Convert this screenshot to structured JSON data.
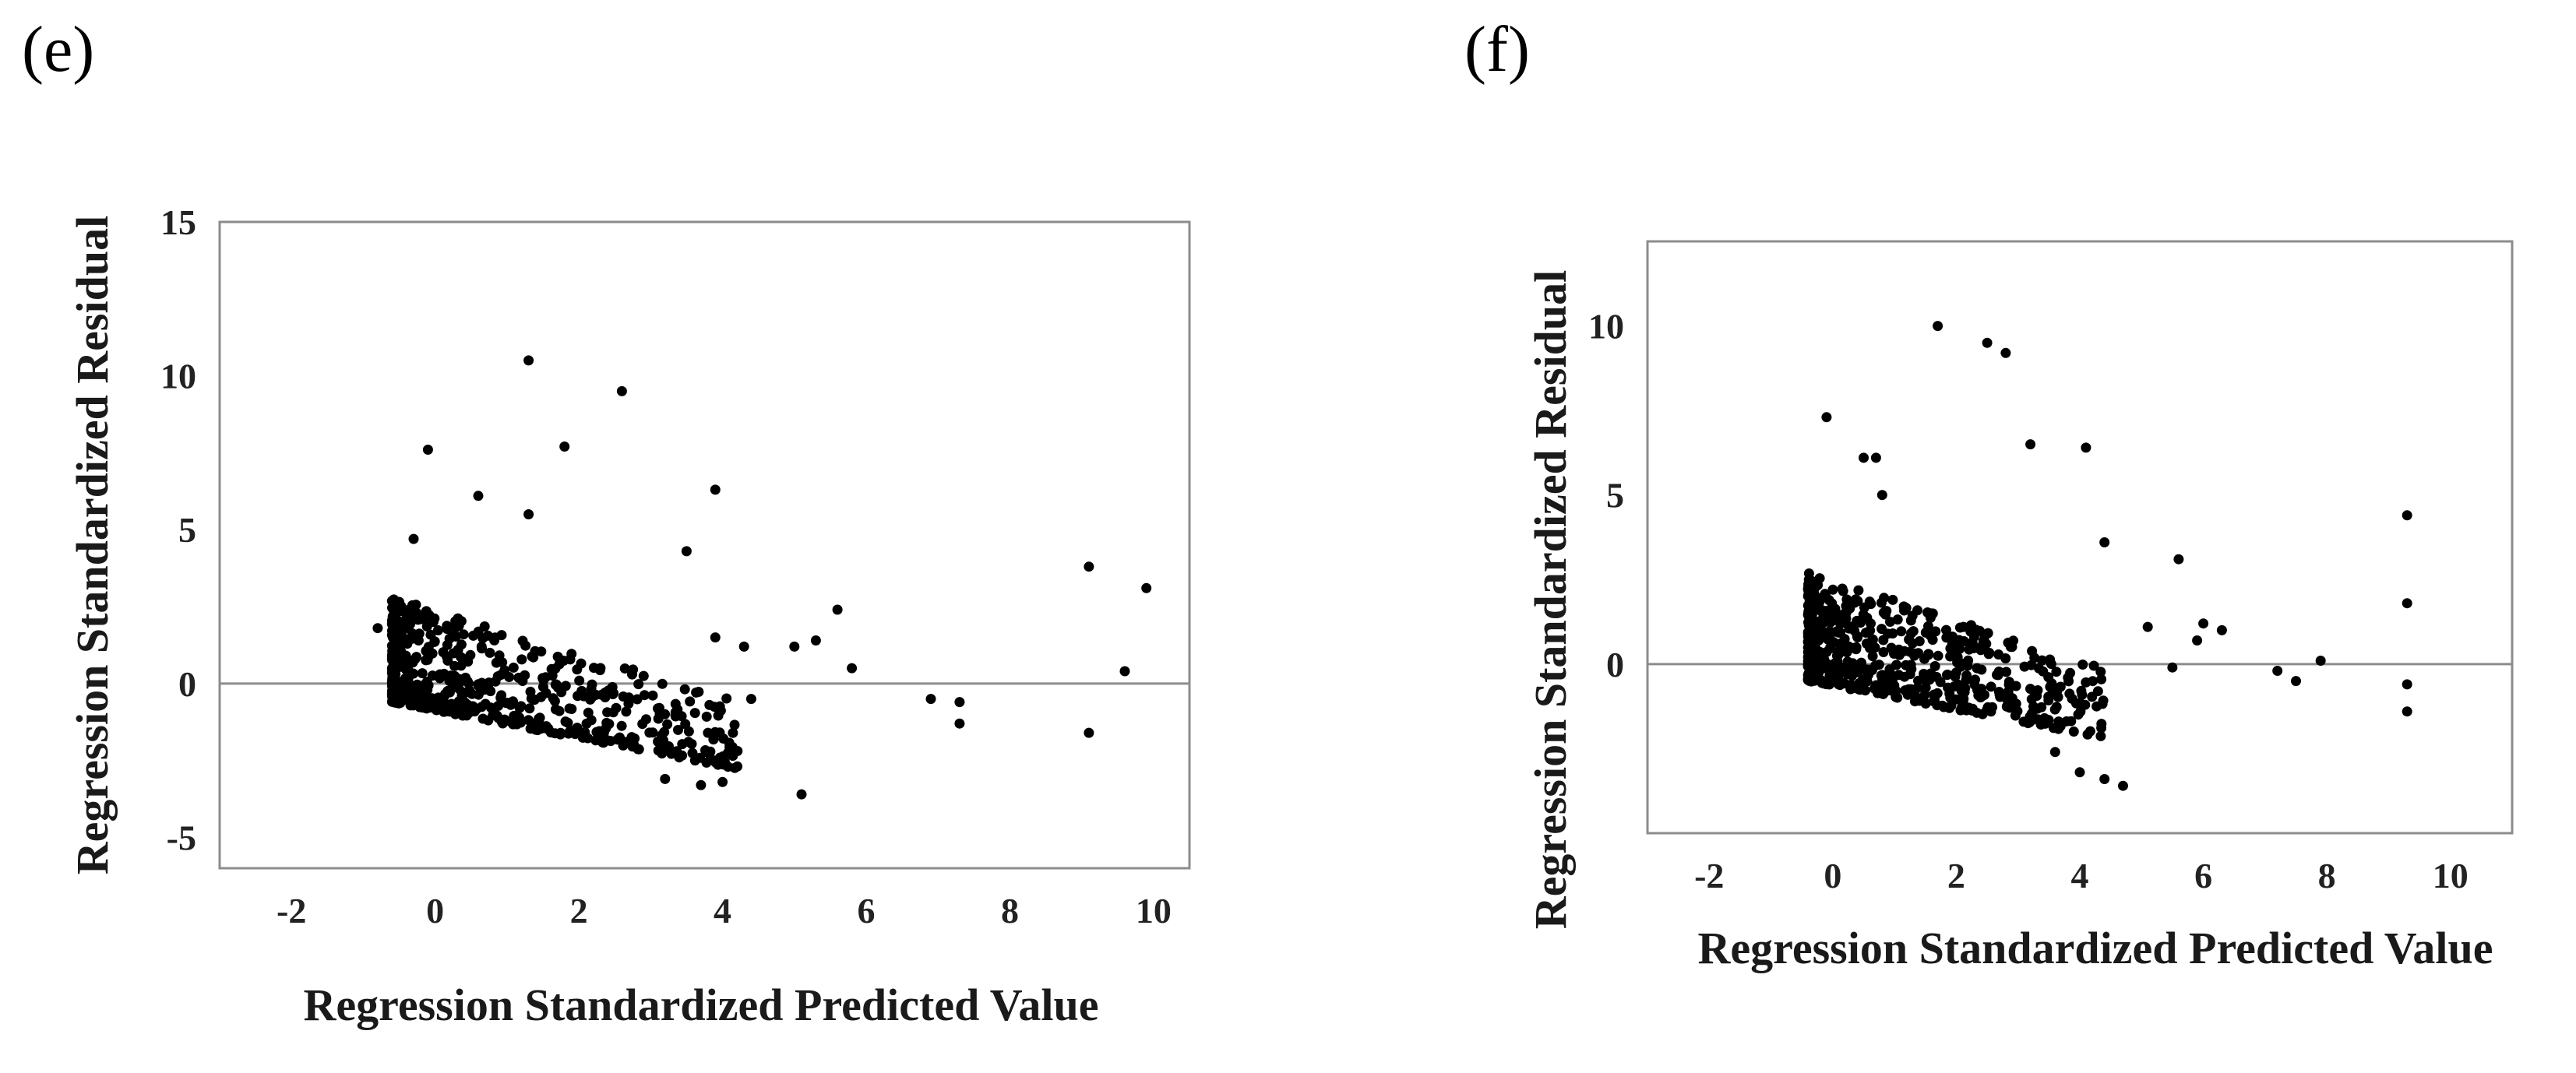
{
  "chart_data": [
    {
      "panel": "(e)",
      "type": "scatter",
      "title": "",
      "xlabel": "Regression Standardized Predicted Value",
      "ylabel": "Regression Standardized Residual",
      "xlim": [
        -3,
        10.5
      ],
      "ylim": [
        -6,
        15
      ],
      "xticks": [
        -2,
        0,
        2,
        4,
        6,
        8,
        10
      ],
      "yticks": [
        15,
        10,
        5,
        0,
        -5
      ],
      "reference_line_y": 0,
      "outliers": [
        {
          "x": 1.3,
          "y": 10.5
        },
        {
          "x": 2.6,
          "y": 9.5
        },
        {
          "x": 1.8,
          "y": 7.7
        },
        {
          "x": -0.1,
          "y": 7.6
        },
        {
          "x": 3.9,
          "y": 6.3
        },
        {
          "x": 0.6,
          "y": 6.1
        },
        {
          "x": 1.3,
          "y": 5.5
        },
        {
          "x": -0.3,
          "y": 4.7
        },
        {
          "x": 3.5,
          "y": 4.3
        },
        {
          "x": 9.1,
          "y": 3.8
        },
        {
          "x": 9.9,
          "y": 3.1
        },
        {
          "x": 5.6,
          "y": 2.4
        },
        {
          "x": 5.0,
          "y": 1.2
        },
        {
          "x": 5.3,
          "y": 1.4
        },
        {
          "x": 5.8,
          "y": 0.5
        },
        {
          "x": 9.6,
          "y": 0.4
        },
        {
          "x": 6.9,
          "y": -0.5
        },
        {
          "x": 7.3,
          "y": -0.6
        },
        {
          "x": 7.3,
          "y": -1.3
        },
        {
          "x": 9.1,
          "y": -1.6
        },
        {
          "x": 5.1,
          "y": -3.6
        },
        {
          "x": 4.0,
          "y": -3.2
        },
        {
          "x": 3.7,
          "y": -3.3
        },
        {
          "x": 3.2,
          "y": -3.1
        },
        {
          "x": -0.8,
          "y": 1.8
        },
        {
          "x": 4.3,
          "y": 1.2
        },
        {
          "x": 4.4,
          "y": -0.5
        },
        {
          "x": 3.9,
          "y": 1.5
        }
      ],
      "cluster": {
        "x_range": [
          -0.6,
          4.3
        ],
        "baseline": -0.6,
        "slope": -0.45,
        "spread": 3.4,
        "n": 620
      }
    },
    {
      "panel": "(f)",
      "type": "scatter",
      "title": "",
      "xlabel": "Regression Standardized Predicted Value",
      "ylabel": "Regression Standardized Residual",
      "xlim": [
        -3,
        11
      ],
      "ylim": [
        -5,
        12.5
      ],
      "xticks": [
        -2,
        0,
        2,
        4,
        6,
        8,
        10
      ],
      "yticks": [
        10,
        5,
        0
      ],
      "reference_line_y": 0,
      "outliers": [
        {
          "x": 1.7,
          "y": 10.0
        },
        {
          "x": 2.5,
          "y": 9.5
        },
        {
          "x": 2.8,
          "y": 9.2
        },
        {
          "x": -0.1,
          "y": 7.3
        },
        {
          "x": 3.2,
          "y": 6.5
        },
        {
          "x": 4.1,
          "y": 6.4
        },
        {
          "x": 0.5,
          "y": 6.1
        },
        {
          "x": 0.7,
          "y": 6.1
        },
        {
          "x": 0.8,
          "y": 5.0
        },
        {
          "x": 9.3,
          "y": 4.4
        },
        {
          "x": 4.4,
          "y": 3.6
        },
        {
          "x": 5.6,
          "y": 3.1
        },
        {
          "x": 9.3,
          "y": 1.8
        },
        {
          "x": 6.0,
          "y": 1.2
        },
        {
          "x": 6.3,
          "y": 1.0
        },
        {
          "x": 5.9,
          "y": 0.7
        },
        {
          "x": 7.9,
          "y": 0.1
        },
        {
          "x": 7.2,
          "y": -0.2
        },
        {
          "x": 7.5,
          "y": -0.5
        },
        {
          "x": 9.3,
          "y": -0.6
        },
        {
          "x": 9.3,
          "y": -1.4
        },
        {
          "x": 5.5,
          "y": -0.1
        },
        {
          "x": 4.7,
          "y": -3.6
        },
        {
          "x": 4.4,
          "y": -3.4
        },
        {
          "x": 4.0,
          "y": -3.2
        },
        {
          "x": 3.6,
          "y": -2.6
        },
        {
          "x": 5.1,
          "y": 1.1
        }
      ],
      "cluster": {
        "x_range": [
          -0.4,
          4.4
        ],
        "baseline": -0.5,
        "slope": -0.35,
        "spread": 3.2,
        "n": 600
      }
    }
  ]
}
